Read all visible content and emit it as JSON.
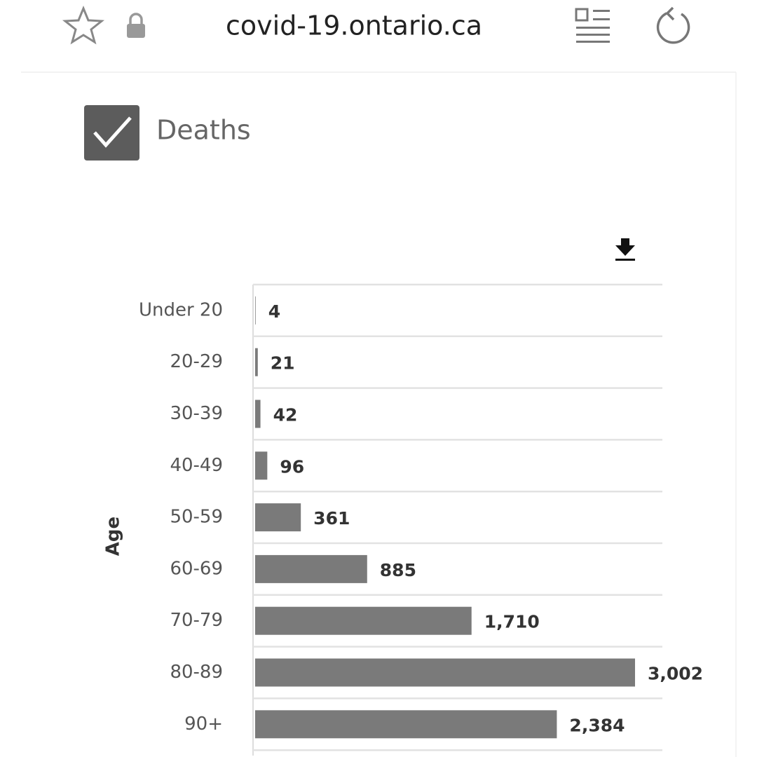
{
  "browser": {
    "url": "covid-19.ontario.ca"
  },
  "checkbox": {
    "label": "Deaths"
  },
  "chart_data": {
    "type": "bar",
    "orientation": "horizontal",
    "y_label": "Age",
    "categories": [
      "Under 20",
      "20-29",
      "30-39",
      "40-49",
      "50-59",
      "60-69",
      "70-79",
      "80-89",
      "90+"
    ],
    "values": [
      4,
      21,
      42,
      96,
      361,
      885,
      1710,
      3002,
      2384
    ],
    "value_labels": [
      "4",
      "21",
      "42",
      "96",
      "361",
      "885",
      "1,710",
      "3,002",
      "2,384"
    ],
    "color": "#7a7a7a"
  }
}
